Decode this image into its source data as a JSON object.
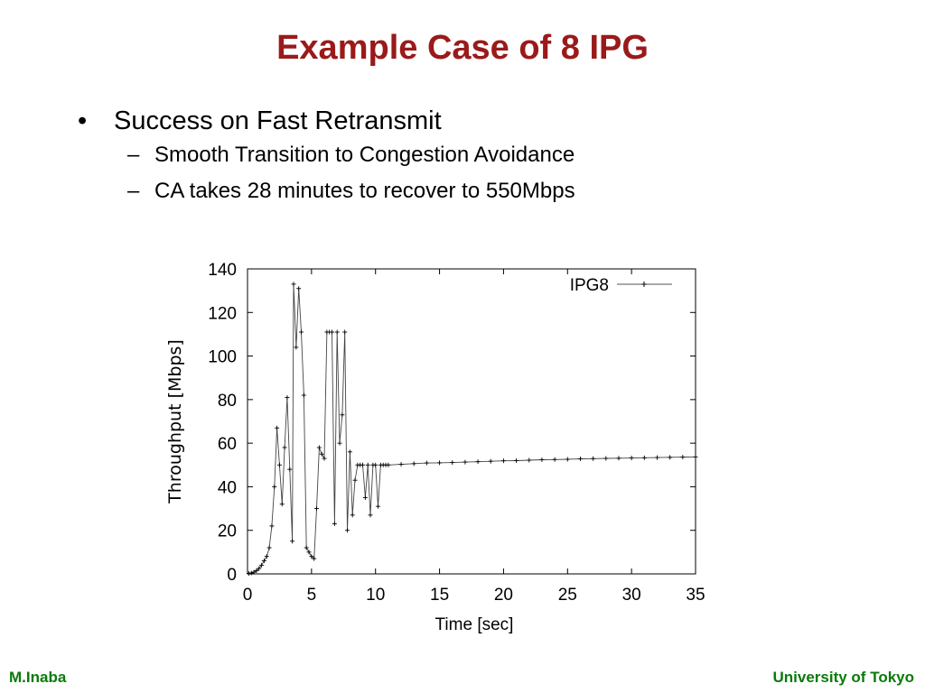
{
  "slide": {
    "title": "Example Case of 8 IPG",
    "bullet": "Success on Fast Retransmit",
    "sub_bullets": [
      "Smooth Transition to Congestion Avoidance",
      "CA takes 28 minutes to recover to 550Mbps"
    ],
    "bullet_marker": "•",
    "sub_marker": "–",
    "footer_left": "M.Inaba",
    "footer_right": "University of Tokyo",
    "title_color": "#9a1a1a",
    "footer_color": "#0a7a0a"
  },
  "chart_data": {
    "type": "line",
    "xlabel": "Time [sec]",
    "ylabel": "Throughput [Mbps]",
    "xlim": [
      0,
      35
    ],
    "ylim": [
      0,
      140
    ],
    "xticks": [
      0,
      5,
      10,
      15,
      20,
      25,
      30,
      35
    ],
    "yticks": [
      0,
      20,
      40,
      60,
      80,
      100,
      120,
      140
    ],
    "grid": false,
    "legend_position": "top-right",
    "series": [
      {
        "name": "IPG8",
        "marker": "plus",
        "x": [
          0.1,
          0.3,
          0.5,
          0.7,
          0.9,
          1.1,
          1.3,
          1.5,
          1.7,
          1.9,
          2.1,
          2.3,
          2.5,
          2.7,
          2.9,
          3.1,
          3.3,
          3.5,
          3.6,
          3.8,
          4.0,
          4.2,
          4.4,
          4.6,
          4.8,
          5.0,
          5.2,
          5.4,
          5.6,
          5.8,
          6.0,
          6.2,
          6.4,
          6.6,
          6.8,
          7.0,
          7.2,
          7.4,
          7.6,
          7.8,
          8.0,
          8.2,
          8.4,
          8.6,
          8.8,
          9.0,
          9.2,
          9.4,
          9.6,
          9.8,
          10.0,
          10.2,
          10.4,
          10.6,
          10.8,
          11,
          12,
          13,
          14,
          15,
          16,
          17,
          18,
          19,
          20,
          21,
          22,
          23,
          24,
          25,
          26,
          27,
          28,
          29,
          30,
          31,
          32,
          33,
          34,
          35
        ],
        "y": [
          0.2,
          0.4,
          0.8,
          1.5,
          2.5,
          4,
          6,
          8,
          12,
          22,
          40,
          67,
          50,
          32,
          58,
          81,
          48,
          15,
          133,
          104,
          131,
          111,
          82,
          12,
          10,
          8,
          7,
          30,
          58,
          55,
          53,
          111,
          111,
          111,
          23,
          111,
          60,
          73,
          111,
          20,
          56,
          27,
          43,
          50,
          50,
          50,
          35,
          50,
          27,
          50,
          50,
          31,
          50,
          50,
          50,
          50,
          50.3,
          50.6,
          50.9,
          51,
          51.1,
          51.3,
          51.5,
          51.7,
          51.9,
          52,
          52.2,
          52.4,
          52.5,
          52.6,
          52.8,
          52.9,
          53,
          53.1,
          53.2,
          53.3,
          53.4,
          53.5,
          53.6,
          53.7
        ]
      }
    ]
  }
}
